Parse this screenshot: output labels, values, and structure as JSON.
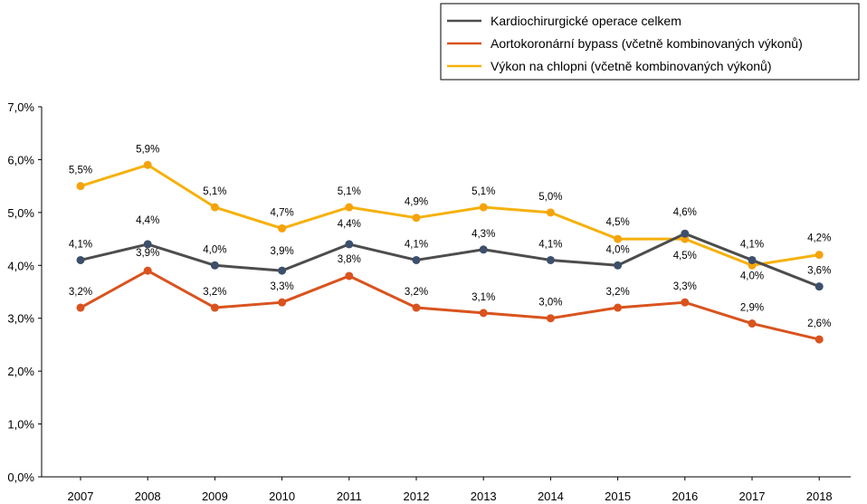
{
  "chart_data": {
    "type": "line",
    "title": "",
    "xlabel": "",
    "ylabel": "",
    "categories": [
      "2007",
      "2008",
      "2009",
      "2010",
      "2011",
      "2012",
      "2013",
      "2014",
      "2015",
      "2016",
      "2017",
      "2018"
    ],
    "ylim": [
      0,
      7
    ],
    "y_ticks": [
      "0,0%",
      "1,0%",
      "2,0%",
      "3,0%",
      "4,0%",
      "5,0%",
      "6,0%",
      "7,0%"
    ],
    "grid": false,
    "legend_position": "top-right",
    "series": [
      {
        "name": "Kardiochirurgické operace celkem",
        "color": "#4d4d4d",
        "marker_color": "#3c4f6b",
        "values": [
          4.1,
          4.4,
          4.0,
          3.9,
          4.4,
          4.1,
          4.3,
          4.1,
          4.0,
          4.6,
          4.1,
          3.6
        ],
        "labels": [
          "4,1%",
          "4,4%",
          "4,0%",
          "3,9%",
          "4,4%",
          "4,1%",
          "4,3%",
          "4,1%",
          "4,0%",
          "4,6%",
          "4,1%",
          "3,6%"
        ]
      },
      {
        "name": "Aortokoronární bypass (včetně kombinovaných výkonů)",
        "color": "#d9531e",
        "marker_color": "#d9531e",
        "values": [
          3.2,
          3.9,
          3.2,
          3.3,
          3.8,
          3.2,
          3.1,
          3.0,
          3.2,
          3.3,
          2.9,
          2.6
        ],
        "labels": [
          "3,2%",
          "3,9%",
          "3,2%",
          "3,3%",
          "3,8%",
          "3,2%",
          "3,1%",
          "3,0%",
          "3,2%",
          "3,3%",
          "2,9%",
          "2,6%"
        ]
      },
      {
        "name": "Výkon na chlopni (včetně kombinovaných výkonů)",
        "color": "#f5b10c",
        "marker_color": "#f5a30c",
        "values": [
          5.5,
          5.9,
          5.1,
          4.7,
          5.1,
          4.9,
          5.1,
          5.0,
          4.5,
          4.5,
          4.0,
          4.2
        ],
        "labels": [
          "5,5%",
          "5,9%",
          "5,1%",
          "4,7%",
          "5,1%",
          "4,9%",
          "5,1%",
          "5,0%",
          "4,5%",
          "4,5%",
          "4,0%",
          "4,2%"
        ]
      }
    ]
  }
}
